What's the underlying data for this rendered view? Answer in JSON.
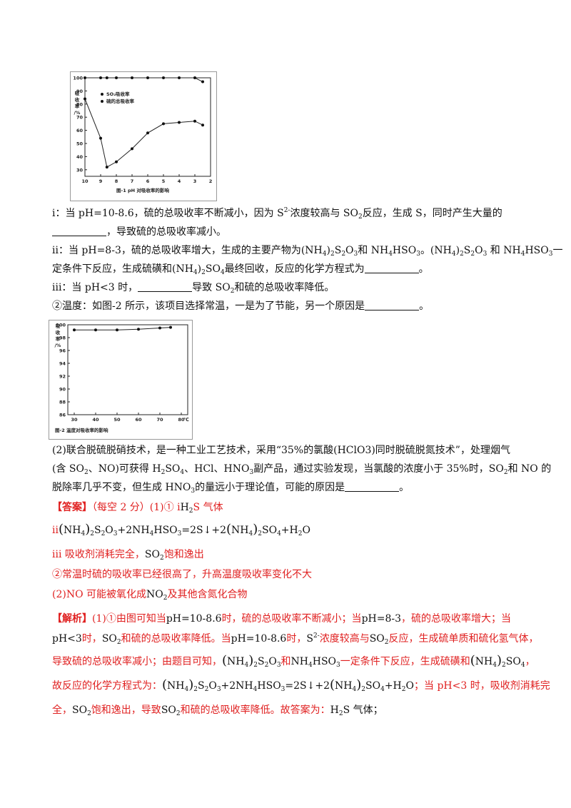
{
  "chart_data": [
    {
      "type": "line",
      "title": "",
      "caption": "图-1  pH 对吸收率的影响",
      "xlabel": "",
      "ylabel": "吸收率/%",
      "x_ticks": [
        "10",
        "9",
        "8",
        "7",
        "6",
        "5",
        "4",
        "3",
        "2"
      ],
      "y_ticks": [
        "30",
        "40",
        "50",
        "60",
        "70",
        "80",
        "90",
        "100"
      ],
      "xlim": [
        10,
        2
      ],
      "ylim": [
        25,
        100
      ],
      "legend": [
        "SO₂吸收率",
        "硫的总吸收率"
      ],
      "series": [
        {
          "name": "SO₂吸收率",
          "x": [
            10,
            9,
            8.6,
            8,
            7,
            6,
            5,
            4,
            3,
            2.5
          ],
          "y": [
            100,
            100,
            100,
            100,
            100,
            100,
            100,
            100,
            100,
            97
          ]
        },
        {
          "name": "硫的总吸收率",
          "x": [
            10,
            9,
            8.6,
            8,
            7,
            6,
            5,
            4,
            3,
            2.5
          ],
          "y": [
            84,
            54,
            32,
            36,
            46,
            58,
            65,
            66,
            67,
            64
          ]
        }
      ]
    },
    {
      "type": "line",
      "title": "",
      "caption": "图-2  温度对吸收率的影响",
      "xlabel": "",
      "ylabel": "吸收率/%",
      "x_unit": "℃",
      "x_ticks": [
        "30",
        "40",
        "50",
        "60",
        "70",
        "80"
      ],
      "y_ticks": [
        "86",
        "88",
        "90",
        "92",
        "94",
        "96",
        "98",
        "100"
      ],
      "xlim": [
        27,
        83
      ],
      "ylim": [
        86,
        100
      ],
      "series": [
        {
          "name": "",
          "x": [
            30,
            40,
            50,
            60,
            70,
            75
          ],
          "y": [
            99.2,
            99.2,
            99.2,
            99.3,
            99.5,
            99.6
          ]
        }
      ]
    }
  ],
  "text": {
    "i_a": "i：当 pH=10-8.6，硫的总吸收率不断减小，因为 S",
    "i_sup": "2-",
    "i_b": "浓度较高与 SO",
    "i_c": "反应，生成 S，同时产生大量的",
    "i2": "，导致硫的总吸收率减小。",
    "ii_a": "ii：当 pH=8-3，硫的总吸收率增大，生成的主要产物为(NH",
    "ii_b": ")",
    "ii_c": "S",
    "ii_d": "O",
    "ii_e": "和 NH",
    "ii_f": "HSO",
    "ii_g": "。(NH",
    "ii_h": "HSO",
    "ii_i": "一",
    "ii2_a": "定条件下反应，生成硫磺和(NH",
    "ii2_b": "SO",
    "ii2_c": "最终回收，反应的化学方程式为",
    "ii2_d": "。",
    "iii_a": "iii：当 pH<3 时，",
    "iii_b": "导致 SO",
    "iii_c": "和硫的总吸收率降低。",
    "temp_a": "②温度：如图-2 所示，该项目选择常温，一是为了节能，另一个原因是",
    "temp_b": "。",
    "p2_1": "(2)联合脱硫脱硝技术，是一种工业工艺技术，采用“35%的氯酸(HClO3)同时脱硫脱氮技术”，处理烟气",
    "p2_2a": "(含 SO",
    "p2_2b": "、NO)可获得 H",
    "p2_2c": "SO",
    "p2_2d": "、HCl、HNO",
    "p2_2e": "副产品，通过实验发现，当氯酸的浓度小于 35%时，SO",
    "p2_2f": "和 NO 的",
    "p2_3a": "脱除率几乎不变，但生成 HNO",
    "p2_3b": "的量远小于理论值，可能的原因是",
    "p2_3c": "。"
  },
  "answer": {
    "tag": "【答案】",
    "score": "（每空 2 分）(1)① i",
    "a1_b": "H",
    "a1_c": "S 气体",
    "ii_label": "ii",
    "ii_eq_1": "NH",
    "ii_eq_2": "S",
    "ii_eq_3": "O",
    "ii_eq_4": "+2NH",
    "ii_eq_5": "HSO",
    "ii_eq_6": "=2S↓+2",
    "ii_eq_7": "SO",
    "ii_eq_8": "+H",
    "ii_eq_9": "O",
    "iii_a": "iii 吸收剂消耗完全，",
    "iii_b": "SO",
    "iii_c": "饱和逸出",
    "a2": "②常温时硫的吸收率已经很高了，升高温度吸收率变化不大",
    "a3_a": "(2)NO 可能被氧化成",
    "a3_b": "NO",
    "a3_c": "及其他含氮化合物"
  },
  "analysis": {
    "tag": "【解析】",
    "l1_a": "(1)①由图可知当",
    "l1_b": "pH=10-8.6",
    "l1_c": "时，硫的总吸收率不断减小；当",
    "l1_d": "pH=8-3",
    "l1_e": "，硫的总吸收率增大；当",
    "l2_a": "pH<3",
    "l2_b": "时，",
    "l2_c": "SO",
    "l2_d": "和硫的总吸收率降低。当",
    "l2_e": "pH=10-8.6",
    "l2_f": "时，",
    "l2_g": "S",
    "l2_h": "2-",
    "l2_i": "浓度较高与",
    "l2_j": "SO",
    "l2_k": "反应，生成硫单质和硫化氢气体，",
    "l3_a": "导致硫的总吸收率减小；由题目可知，",
    "l3_b": "NH",
    "l3_c": "S",
    "l3_d": "O",
    "l3_e": "和",
    "l3_f": "NH",
    "l3_g": "HSO",
    "l3_h": "一定条件下反应，生成硫磺和",
    "l3_i": "NH",
    "l3_j": "SO",
    "l4_a": "故反应的化学方程式为：",
    "l4_b": "NH",
    "l4_c": "S",
    "l4_d": "O",
    "l4_e": "+2NH",
    "l4_f": "HSO",
    "l4_g": "=2S↓+2",
    "l4_h": "NH",
    "l4_i": "SO",
    "l4_j": "+H",
    "l4_k": "O",
    "l4_l": "；当 pH<3 时，吸收剂消耗完",
    "l5_a": "全，",
    "l5_b": "SO",
    "l5_c": "饱和逸出，导致",
    "l5_d": "SO",
    "l5_e": "和硫的总吸收率降低。故答案为：",
    "l5_f": "H",
    "l5_g": "S 气体；"
  },
  "subs": {
    "two": "2",
    "three": "3",
    "four": "4"
  },
  "colors": {
    "answer_red": "#e02020",
    "text": "#111111"
  }
}
